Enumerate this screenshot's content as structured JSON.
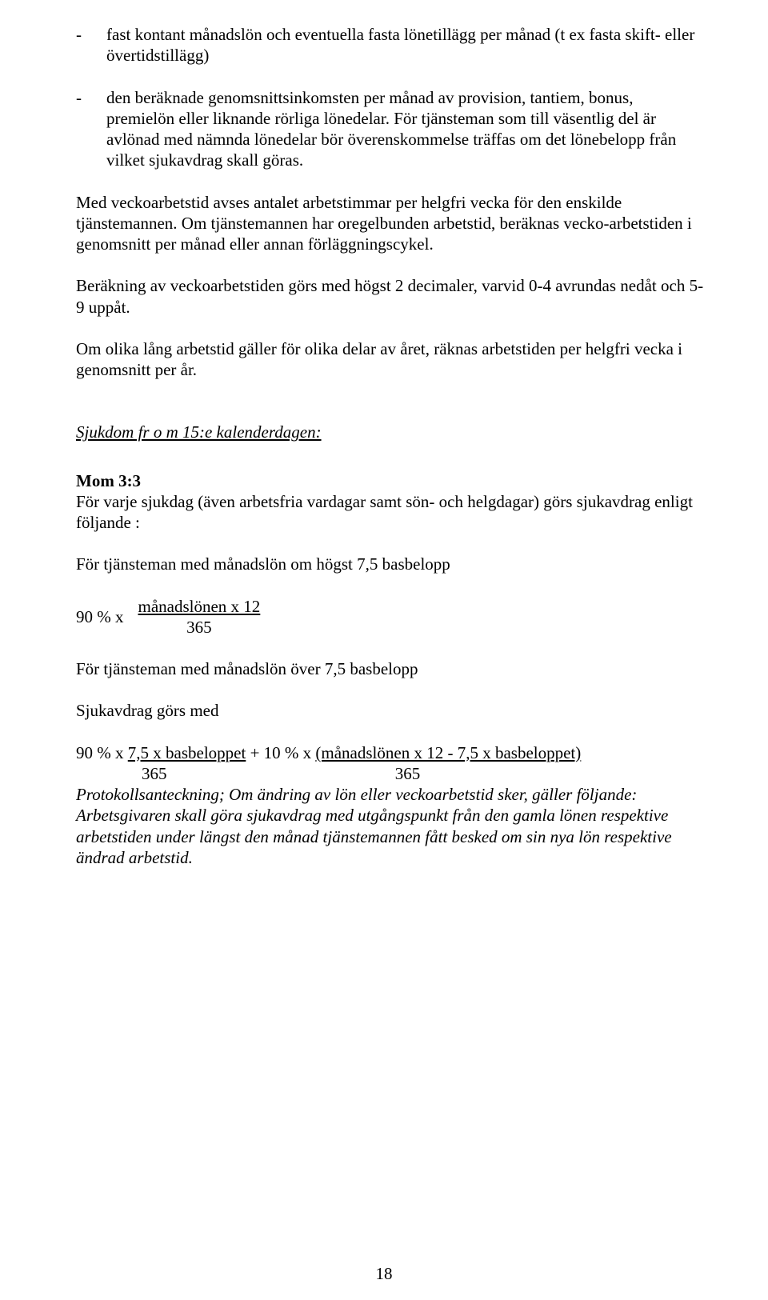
{
  "bullets": [
    "fast kontant månadslön och eventuella fasta lönetillägg per månad (t ex fasta skift- eller övertidstillägg)",
    "den beräknade genomsnittsinkomsten per månad av provision, tantiem, bonus, premielön eller liknande rörliga lönedelar. För tjänsteman som till väsentlig del är avlönad med nämnda lönedelar bör överenskommelse träffas om det lönebelopp från vilket sjukavdrag skall göras."
  ],
  "p1": "Med veckoarbetstid avses antalet arbetstimmar per helgfri vecka för den enskilde tjänstemannen. Om tjänstemannen har oregelbunden arbetstid, beräknas vecko-arbetstiden i genomsnitt per månad eller annan förläggningscykel.",
  "p2": "Beräkning av veckoarbetstiden görs med högst 2 decimaler, varvid 0-4 avrundas nedåt och 5-9 uppåt.",
  "p3": "Om olika lång arbetstid gäller för olika delar av året, räknas arbetstiden per helgfri vecka i genomsnitt per år.",
  "section_title": "Sjukdom fr o m 15:e kalenderdagen:",
  "mom_title": "Mom 3:3",
  "mom_text": "För varje sjukdag (även arbetsfria vardagar samt sön- och helgdagar) görs sjukavdrag enligt följande :",
  "p4": "För tjänsteman med månadslön om högst 7,5 basbelopp",
  "formula1": {
    "prefix": "90 % x",
    "numerator": "månadslönen x 12",
    "denominator": "365"
  },
  "p5": "För tjänsteman med månadslön över 7,5 basbelopp",
  "p6": "Sjukavdrag görs med",
  "formula2": {
    "line1_a": "90 % x ",
    "line1_b": "7,5 x basbeloppet",
    "line1_c": " + 10 % x ",
    "line1_d": "(månadslönen x 12 - 7,5 x basbeloppet)",
    "den_left": "365",
    "den_right": "365"
  },
  "protokoll_lead": "Protokollsanteckning;",
  "protokoll_body": " Om ändring av lön eller veckoarbetstid sker, gäller följande: Arbetsgivaren skall göra sjukavdrag med utgångspunkt från den gamla lönen respektive arbetstiden under längst den månad tjänstemannen fått besked om sin nya lön respektive ändrad arbetstid.",
  "page_number": "18"
}
